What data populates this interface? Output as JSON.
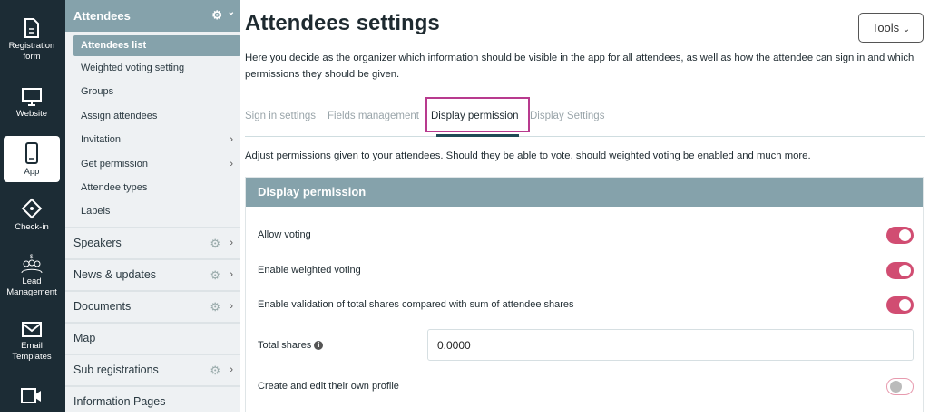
{
  "rail": [
    {
      "label": "Registration form",
      "icon": "document-icon"
    },
    {
      "label": "Website",
      "icon": "monitor-icon"
    },
    {
      "label": "App",
      "icon": "phone-icon",
      "active": true
    },
    {
      "label": "Check-in",
      "icon": "ticket-icon"
    },
    {
      "label": "Lead Management",
      "icon": "people-icon"
    },
    {
      "label": "Email Templates",
      "icon": "envelope-icon"
    },
    {
      "label": "",
      "icon": "video-icon"
    }
  ],
  "sub": {
    "header": "Attendees",
    "items": [
      "Attendees list",
      "Weighted voting setting",
      "Groups",
      "Assign attendees",
      "Invitation",
      "Get permission",
      "Attendee types",
      "Labels"
    ],
    "sections": [
      "Speakers",
      "News & updates",
      "Documents",
      "Map",
      "Sub registrations",
      "Information Pages"
    ]
  },
  "main": {
    "title": "Attendees settings",
    "tools": "Tools",
    "description": "Here you decide as the organizer which information should be visible in the app for all attendees, as well as how the attendee can sign in and which permissions they should be given.",
    "tabs": [
      "Sign in settings",
      "Fields management",
      "Display permission",
      "Display Settings"
    ],
    "adjust": "Adjust permissions given to your attendees. Should they be able to vote, should weighted voting be enabled and much more.",
    "panel": {
      "title": "Display permission",
      "rows": [
        {
          "label": "Allow voting",
          "on": true
        },
        {
          "label": "Enable weighted voting",
          "on": true
        },
        {
          "label": "Enable validation of total shares compared with sum of attendee shares",
          "on": true
        },
        {
          "label": "Create and edit their own profile",
          "on": false
        }
      ],
      "total_shares_label": "Total shares",
      "total_shares_value": "0.0000"
    }
  },
  "colors": {
    "accent": "#d14d72",
    "rail": "#1c2c35",
    "header": "#85a2ab",
    "highlight": "#b83a8e"
  }
}
